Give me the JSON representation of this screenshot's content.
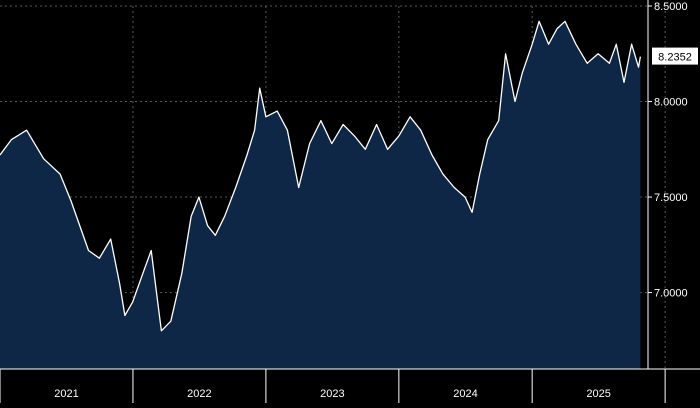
{
  "chart_data": {
    "type": "area",
    "x_range": [
      "2021-01-01",
      "2025-11-15"
    ],
    "ylim": [
      6.6,
      8.5
    ],
    "y_ticks": [
      {
        "value": 8.5,
        "label": "8.5000"
      },
      {
        "value": 8.0,
        "label": "8.0000"
      },
      {
        "value": 7.5,
        "label": "7.5000"
      },
      {
        "value": 7.0,
        "label": "7.0000"
      }
    ],
    "x_ticks": [
      {
        "date": "2021-01-01",
        "label": "2021"
      },
      {
        "date": "2022-01-01",
        "label": "2022"
      },
      {
        "date": "2023-01-01",
        "label": "2023"
      },
      {
        "date": "2024-01-01",
        "label": "2024"
      },
      {
        "date": "2025-01-01",
        "label": "2025"
      },
      {
        "date": "2026-01-01",
        "label": ""
      }
    ],
    "last_value_label": "8.2352",
    "last_value": 8.2352,
    "grid": true,
    "series": [
      {
        "points": [
          [
            "2021-01-01",
            7.72
          ],
          [
            "2021-02-01",
            7.8
          ],
          [
            "2021-03-15",
            7.85
          ],
          [
            "2021-05-01",
            7.7
          ],
          [
            "2021-06-15",
            7.62
          ],
          [
            "2021-07-15",
            7.48
          ],
          [
            "2021-09-01",
            7.22
          ],
          [
            "2021-10-01",
            7.18
          ],
          [
            "2021-11-01",
            7.28
          ],
          [
            "2021-11-25",
            7.05
          ],
          [
            "2021-12-10",
            6.88
          ],
          [
            "2021-12-31",
            6.95
          ],
          [
            "2022-02-01",
            7.12
          ],
          [
            "2022-02-20",
            7.22
          ],
          [
            "2022-03-10",
            6.95
          ],
          [
            "2022-03-20",
            6.8
          ],
          [
            "2022-04-15",
            6.85
          ],
          [
            "2022-05-15",
            7.1
          ],
          [
            "2022-06-10",
            7.4
          ],
          [
            "2022-07-01",
            7.5
          ],
          [
            "2022-07-25",
            7.35
          ],
          [
            "2022-08-15",
            7.3
          ],
          [
            "2022-09-10",
            7.4
          ],
          [
            "2022-10-10",
            7.55
          ],
          [
            "2022-11-10",
            7.72
          ],
          [
            "2022-12-01",
            7.85
          ],
          [
            "2022-12-15",
            8.07
          ],
          [
            "2023-01-01",
            7.92
          ],
          [
            "2023-02-01",
            7.95
          ],
          [
            "2023-03-01",
            7.85
          ],
          [
            "2023-04-01",
            7.55
          ],
          [
            "2023-05-01",
            7.78
          ],
          [
            "2023-06-01",
            7.9
          ],
          [
            "2023-07-01",
            7.78
          ],
          [
            "2023-08-01",
            7.88
          ],
          [
            "2023-09-01",
            7.82
          ],
          [
            "2023-10-01",
            7.75
          ],
          [
            "2023-11-01",
            7.88
          ],
          [
            "2023-12-01",
            7.75
          ],
          [
            "2024-01-01",
            7.82
          ],
          [
            "2024-02-01",
            7.92
          ],
          [
            "2024-03-01",
            7.85
          ],
          [
            "2024-04-01",
            7.72
          ],
          [
            "2024-05-01",
            7.62
          ],
          [
            "2024-06-01",
            7.55
          ],
          [
            "2024-07-01",
            7.5
          ],
          [
            "2024-07-20",
            7.42
          ],
          [
            "2024-08-10",
            7.62
          ],
          [
            "2024-09-01",
            7.8
          ],
          [
            "2024-10-01",
            7.9
          ],
          [
            "2024-10-20",
            8.25
          ],
          [
            "2024-11-15",
            8.0
          ],
          [
            "2024-12-05",
            8.15
          ],
          [
            "2025-01-01",
            8.3
          ],
          [
            "2025-01-20",
            8.42
          ],
          [
            "2025-02-15",
            8.3
          ],
          [
            "2025-03-10",
            8.38
          ],
          [
            "2025-04-01",
            8.42
          ],
          [
            "2025-05-01",
            8.3
          ],
          [
            "2025-06-01",
            8.2
          ],
          [
            "2025-07-01",
            8.25
          ],
          [
            "2025-08-01",
            8.2
          ],
          [
            "2025-08-20",
            8.3
          ],
          [
            "2025-09-10",
            8.1
          ],
          [
            "2025-10-01",
            8.3
          ],
          [
            "2025-10-20",
            8.18
          ],
          [
            "2025-10-25",
            8.2352
          ]
        ]
      }
    ]
  },
  "colors": {
    "background": "#000000",
    "area_fill": "#0e2747",
    "line": "#ffffff",
    "grid": "#5a5a5a",
    "label_box_bg": "#ffffff",
    "label_box_text": "#000000",
    "axis_text": "#ffffff"
  }
}
